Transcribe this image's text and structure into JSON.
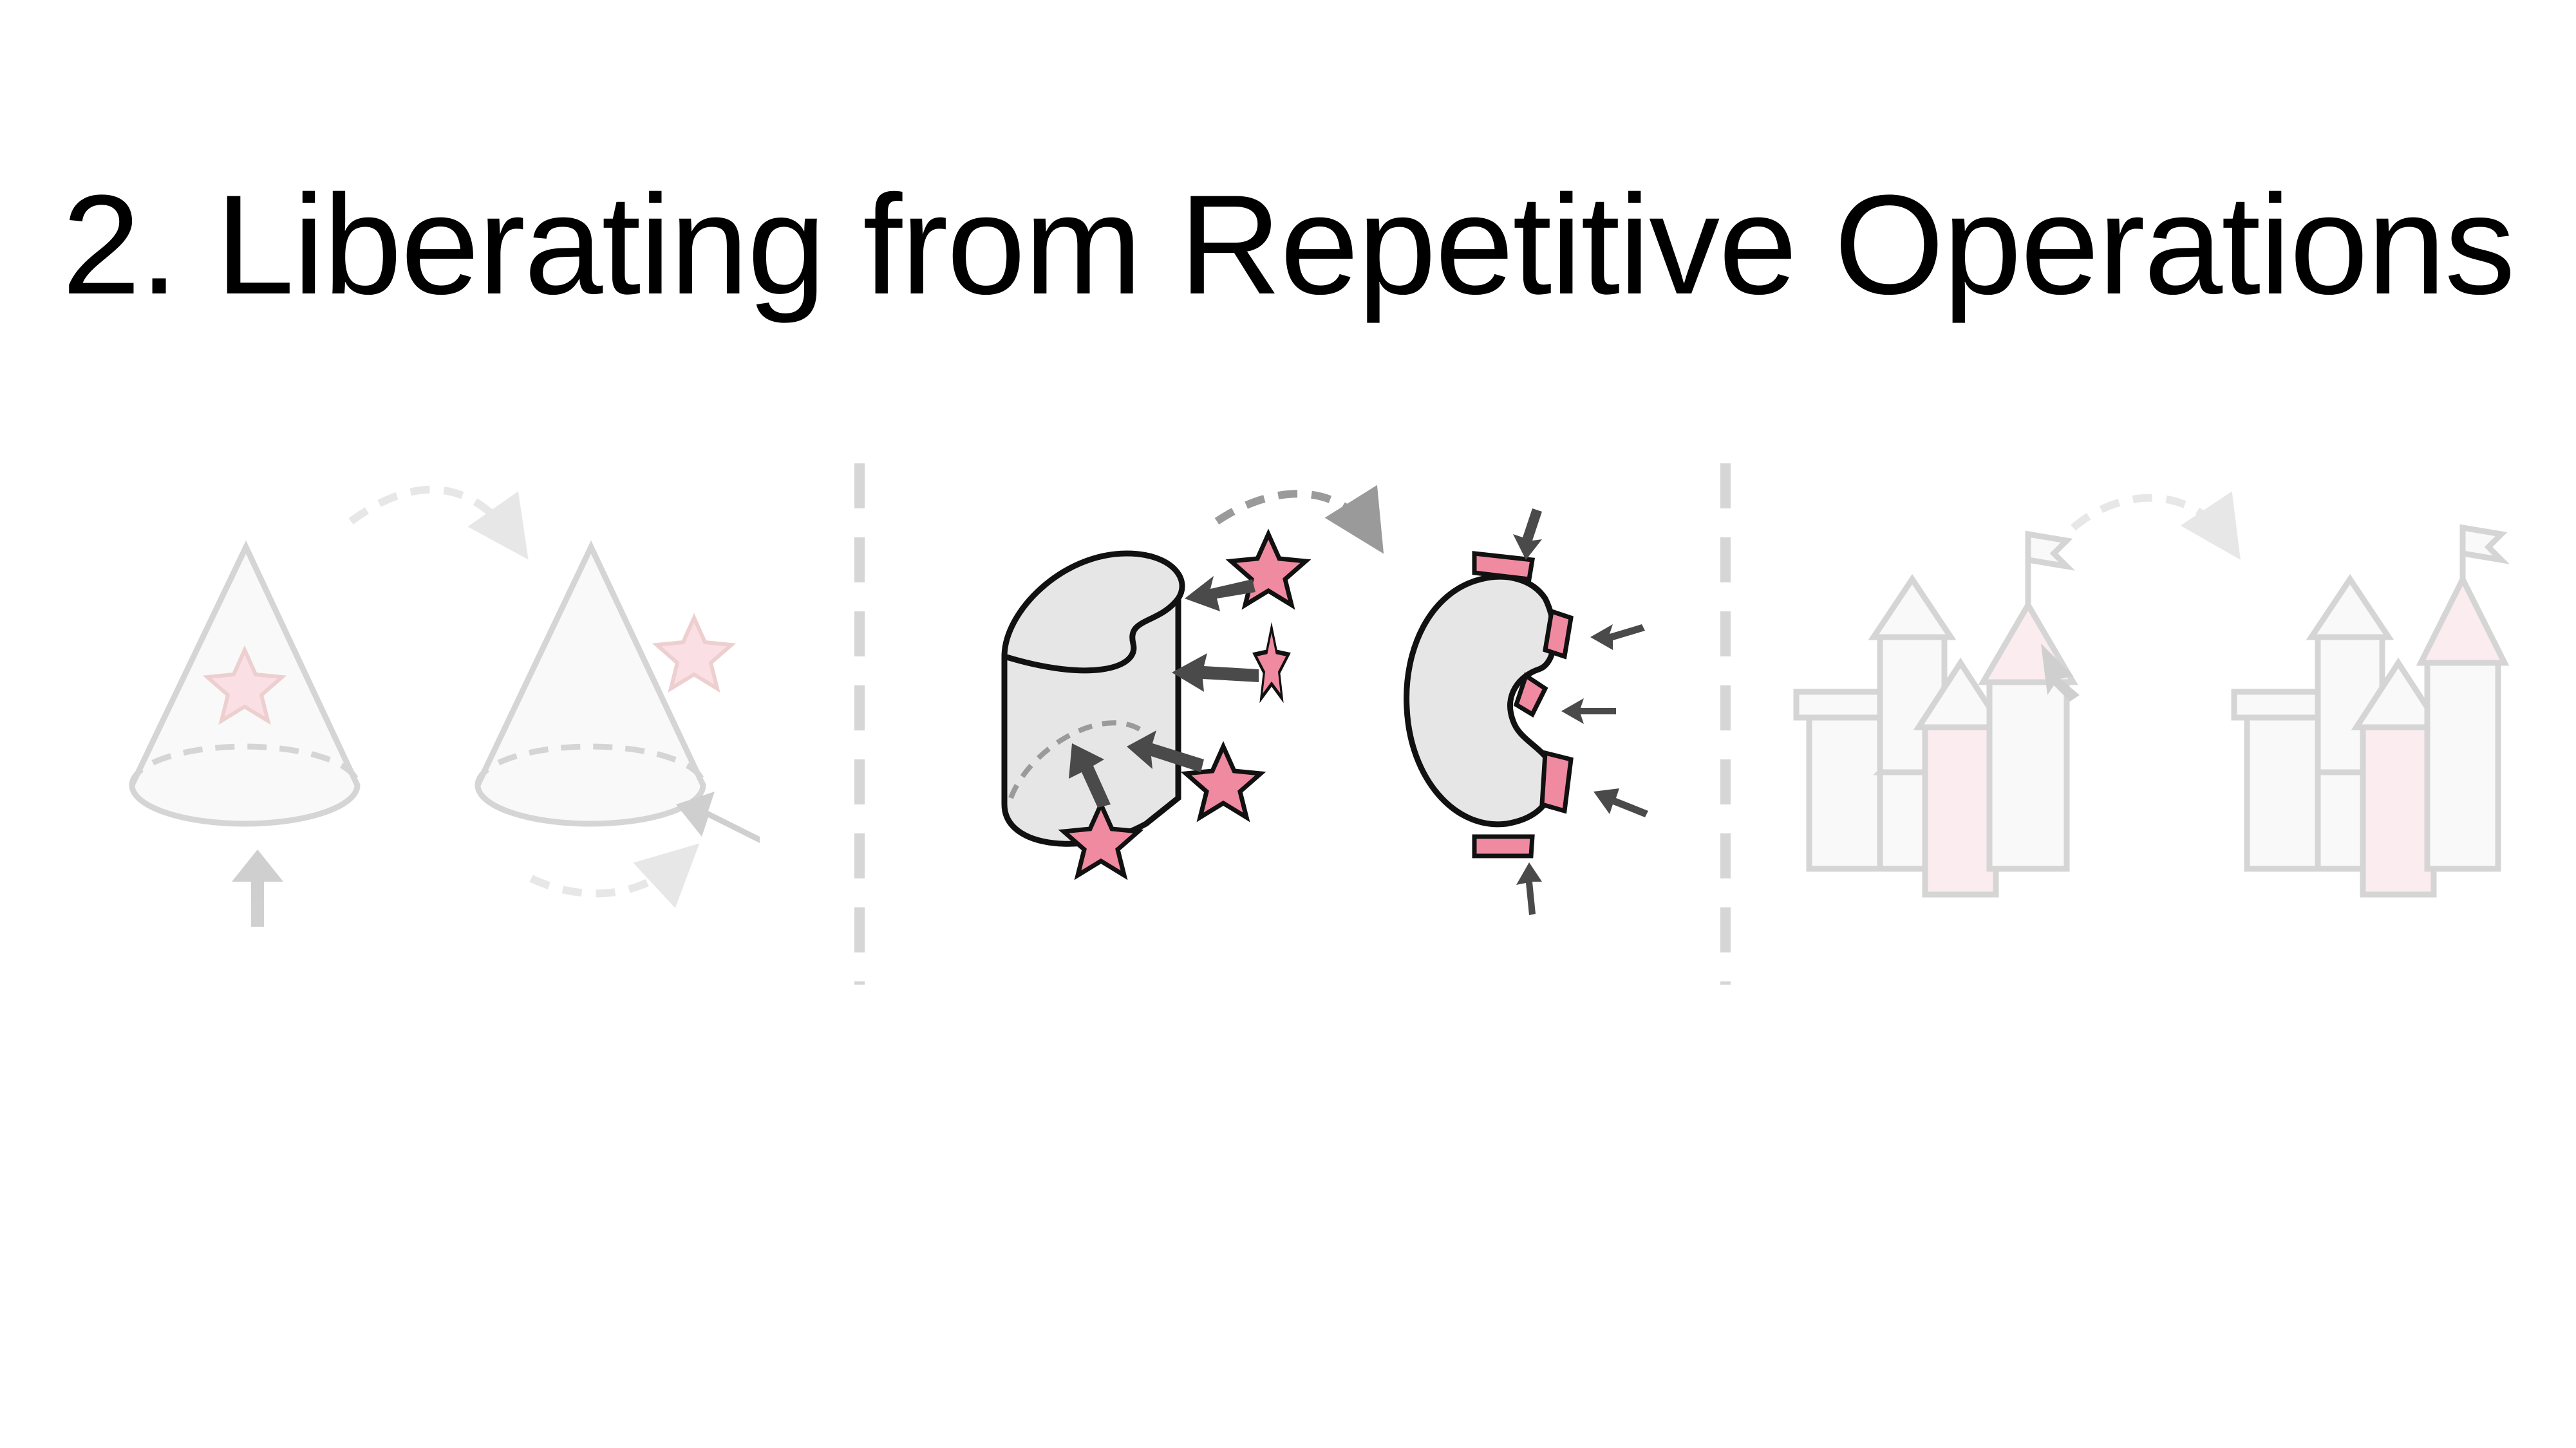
{
  "slide": {
    "title": "2. Liberating from Repetitive Operations"
  },
  "colors": {
    "background": "#ffffff",
    "text": "#000000",
    "shape_fill": "#e6e6e6",
    "accent_pink": "#f08aa0",
    "arrow_dark": "#4a4a4a",
    "divider": "#d0d0d0"
  },
  "panels": [
    {
      "name": "cone-example",
      "state": "faded"
    },
    {
      "name": "cylinder-example",
      "state": "active"
    },
    {
      "name": "castle-example",
      "state": "faded"
    }
  ],
  "icons": [
    "cone-icon",
    "star-icon",
    "arrow-icon",
    "dashed-curve-arrow-icon",
    "cylinder-icon",
    "castle-icon",
    "flag-icon",
    "cursor-icon"
  ]
}
